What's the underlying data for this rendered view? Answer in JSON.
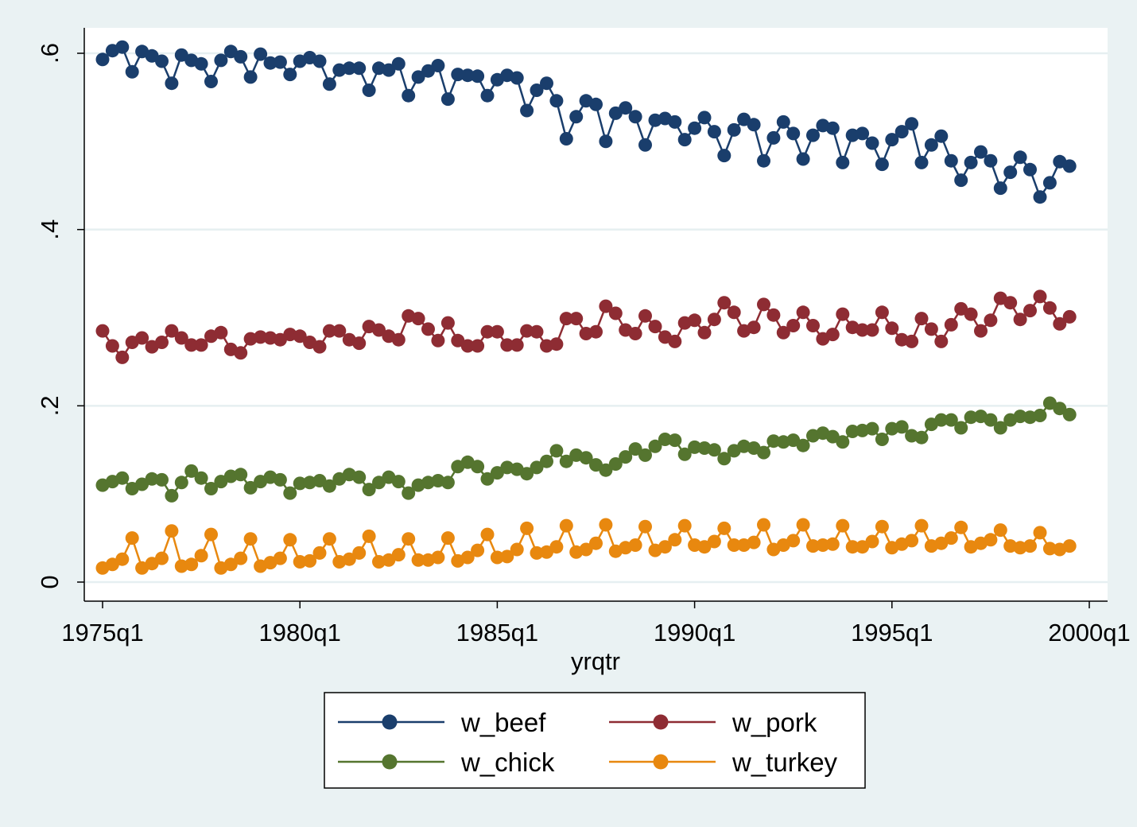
{
  "chart_data": {
    "type": "line",
    "title": "",
    "xlabel": "yrqtr",
    "ylabel": "",
    "x_ticks": [
      "1975q1",
      "1980q1",
      "1985q1",
      "1990q1",
      "1995q1",
      "2000q1"
    ],
    "y_ticks": [
      "0",
      ".2",
      ".4",
      ".6"
    ],
    "y_tick_values": [
      0,
      0.2,
      0.4,
      0.6
    ],
    "xlim": [
      "1975q1",
      "2000q1"
    ],
    "ylim": [
      -0.025,
      0.625
    ],
    "grid": true,
    "legend_position": "bottom",
    "x_start": "1975q1",
    "x": [
      "1975q1",
      "1975q2",
      "1975q3",
      "1975q4",
      "1976q1",
      "1976q2",
      "1976q3",
      "1976q4",
      "1977q1",
      "1977q2",
      "1977q3",
      "1977q4",
      "1978q1",
      "1978q2",
      "1978q3",
      "1978q4",
      "1979q1",
      "1979q2",
      "1979q3",
      "1979q4",
      "1980q1",
      "1980q2",
      "1980q3",
      "1980q4",
      "1981q1",
      "1981q2",
      "1981q3",
      "1981q4",
      "1982q1",
      "1982q2",
      "1982q3",
      "1982q4",
      "1983q1",
      "1983q2",
      "1983q3",
      "1983q4",
      "1984q1",
      "1984q2",
      "1984q3",
      "1984q4",
      "1985q1",
      "1985q2",
      "1985q3",
      "1985q4",
      "1986q1",
      "1986q2",
      "1986q3",
      "1986q4",
      "1987q1",
      "1987q2",
      "1987q3",
      "1987q4",
      "1988q1",
      "1988q2",
      "1988q3",
      "1988q4",
      "1989q1",
      "1989q2",
      "1989q3",
      "1989q4",
      "1990q1",
      "1990q2",
      "1990q3",
      "1990q4",
      "1991q1",
      "1991q2",
      "1991q3",
      "1991q4",
      "1992q1",
      "1992q2",
      "1992q3",
      "1992q4",
      "1993q1",
      "1993q2",
      "1993q3",
      "1993q4",
      "1994q1",
      "1994q2",
      "1994q3",
      "1994q4",
      "1995q1",
      "1995q2",
      "1995q3",
      "1995q4",
      "1996q1",
      "1996q2",
      "1996q3",
      "1996q4",
      "1997q1",
      "1997q2",
      "1997q3",
      "1997q4",
      "1998q1",
      "1998q2",
      "1998q3",
      "1998q4",
      "1999q1",
      "1999q2",
      "1999q3"
    ],
    "series": [
      {
        "name": "w_beef",
        "color": "#1a3e6c",
        "values": [
          0.593,
          0.603,
          0.607,
          0.579,
          0.602,
          0.597,
          0.591,
          0.566,
          0.598,
          0.592,
          0.588,
          0.568,
          0.592,
          0.602,
          0.596,
          0.573,
          0.599,
          0.589,
          0.59,
          0.576,
          0.591,
          0.595,
          0.591,
          0.565,
          0.581,
          0.583,
          0.583,
          0.558,
          0.583,
          0.581,
          0.588,
          0.552,
          0.573,
          0.58,
          0.586,
          0.548,
          0.576,
          0.575,
          0.574,
          0.552,
          0.57,
          0.575,
          0.572,
          0.535,
          0.558,
          0.566,
          0.546,
          0.503,
          0.528,
          0.546,
          0.542,
          0.5,
          0.532,
          0.538,
          0.528,
          0.496,
          0.524,
          0.526,
          0.522,
          0.502,
          0.515,
          0.527,
          0.511,
          0.484,
          0.513,
          0.525,
          0.519,
          0.478,
          0.504,
          0.522,
          0.509,
          0.48,
          0.507,
          0.518,
          0.515,
          0.476,
          0.507,
          0.509,
          0.498,
          0.474,
          0.502,
          0.511,
          0.52,
          0.476,
          0.496,
          0.506,
          0.478,
          0.456,
          0.476,
          0.488,
          0.478,
          0.447,
          0.465,
          0.482,
          0.468,
          0.437,
          0.453,
          0.477,
          0.472
        ]
      },
      {
        "name": "w_pork",
        "color": "#8e2c33",
        "values": [
          0.285,
          0.268,
          0.255,
          0.272,
          0.277,
          0.267,
          0.272,
          0.285,
          0.277,
          0.269,
          0.269,
          0.279,
          0.283,
          0.264,
          0.26,
          0.276,
          0.278,
          0.277,
          0.275,
          0.281,
          0.279,
          0.272,
          0.267,
          0.285,
          0.285,
          0.275,
          0.271,
          0.29,
          0.286,
          0.279,
          0.275,
          0.302,
          0.299,
          0.287,
          0.274,
          0.294,
          0.274,
          0.268,
          0.268,
          0.284,
          0.284,
          0.269,
          0.269,
          0.285,
          0.284,
          0.268,
          0.27,
          0.299,
          0.299,
          0.282,
          0.284,
          0.313,
          0.305,
          0.286,
          0.282,
          0.302,
          0.29,
          0.278,
          0.273,
          0.294,
          0.297,
          0.283,
          0.298,
          0.317,
          0.306,
          0.285,
          0.289,
          0.315,
          0.303,
          0.283,
          0.291,
          0.306,
          0.291,
          0.276,
          0.281,
          0.304,
          0.289,
          0.286,
          0.286,
          0.306,
          0.288,
          0.275,
          0.273,
          0.299,
          0.287,
          0.273,
          0.292,
          0.31,
          0.304,
          0.285,
          0.297,
          0.322,
          0.317,
          0.298,
          0.308,
          0.324,
          0.311,
          0.293,
          0.301
        ]
      },
      {
        "name": "w_chick",
        "color": "#55752f",
        "values": [
          0.11,
          0.114,
          0.118,
          0.106,
          0.111,
          0.117,
          0.116,
          0.098,
          0.113,
          0.126,
          0.118,
          0.106,
          0.114,
          0.12,
          0.122,
          0.107,
          0.114,
          0.119,
          0.116,
          0.101,
          0.112,
          0.113,
          0.115,
          0.109,
          0.117,
          0.122,
          0.119,
          0.105,
          0.113,
          0.119,
          0.114,
          0.101,
          0.11,
          0.113,
          0.115,
          0.113,
          0.131,
          0.136,
          0.131,
          0.117,
          0.124,
          0.13,
          0.128,
          0.123,
          0.13,
          0.137,
          0.149,
          0.137,
          0.144,
          0.141,
          0.133,
          0.127,
          0.134,
          0.142,
          0.151,
          0.144,
          0.154,
          0.162,
          0.161,
          0.145,
          0.153,
          0.152,
          0.15,
          0.14,
          0.149,
          0.154,
          0.152,
          0.147,
          0.16,
          0.159,
          0.161,
          0.155,
          0.166,
          0.169,
          0.165,
          0.159,
          0.171,
          0.172,
          0.174,
          0.162,
          0.174,
          0.176,
          0.166,
          0.164,
          0.179,
          0.184,
          0.184,
          0.175,
          0.187,
          0.188,
          0.184,
          0.175,
          0.184,
          0.188,
          0.187,
          0.189,
          0.203,
          0.197,
          0.19
        ]
      },
      {
        "name": "w_turkey",
        "color": "#e8880f",
        "values": [
          0.016,
          0.02,
          0.026,
          0.05,
          0.016,
          0.021,
          0.027,
          0.058,
          0.018,
          0.02,
          0.03,
          0.054,
          0.016,
          0.02,
          0.027,
          0.049,
          0.018,
          0.022,
          0.027,
          0.048,
          0.023,
          0.024,
          0.033,
          0.049,
          0.023,
          0.026,
          0.033,
          0.052,
          0.023,
          0.025,
          0.031,
          0.049,
          0.025,
          0.025,
          0.028,
          0.05,
          0.024,
          0.028,
          0.036,
          0.054,
          0.028,
          0.029,
          0.037,
          0.061,
          0.033,
          0.034,
          0.04,
          0.064,
          0.034,
          0.037,
          0.044,
          0.065,
          0.035,
          0.039,
          0.042,
          0.063,
          0.036,
          0.04,
          0.048,
          0.064,
          0.042,
          0.04,
          0.046,
          0.061,
          0.042,
          0.042,
          0.045,
          0.065,
          0.037,
          0.042,
          0.047,
          0.065,
          0.041,
          0.042,
          0.043,
          0.064,
          0.04,
          0.04,
          0.046,
          0.063,
          0.039,
          0.043,
          0.047,
          0.064,
          0.041,
          0.044,
          0.05,
          0.062,
          0.04,
          0.044,
          0.048,
          0.059,
          0.041,
          0.039,
          0.041,
          0.056,
          0.038,
          0.037,
          0.041
        ]
      }
    ]
  }
}
